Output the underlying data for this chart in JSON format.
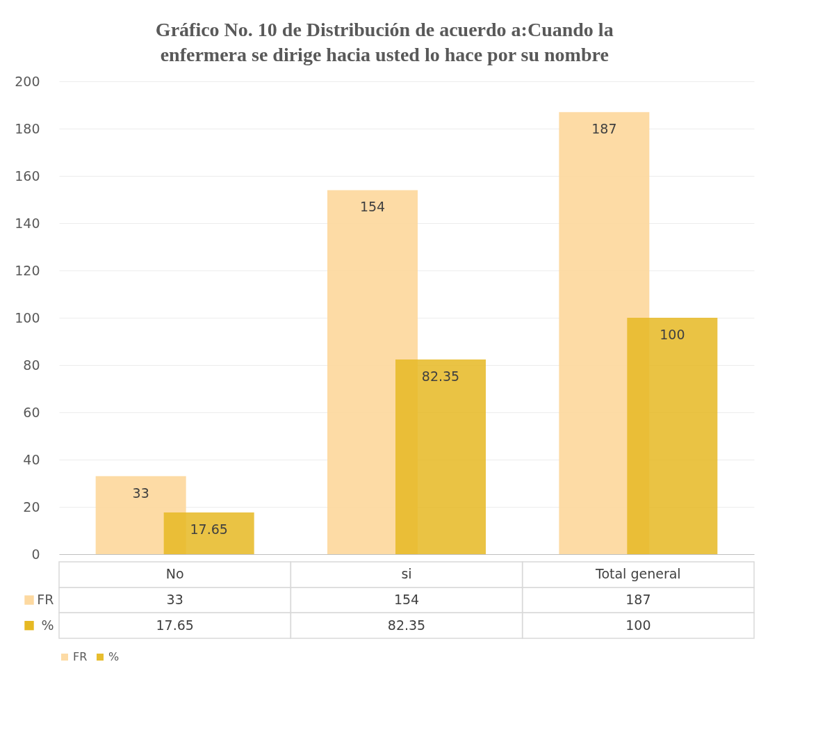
{
  "chart_data": {
    "type": "bar",
    "title": "Gráfico No. 10 de Distribución de acuerdo a:Cuando la enfermera se dirige hacia usted lo hace por su nombre",
    "categories": [
      "No",
      "si",
      "Total general"
    ],
    "series": [
      {
        "name": "FR",
        "color": "#fdd9a0",
        "values": [
          33,
          154,
          187
        ]
      },
      {
        "name": "%",
        "color": "#e6b923",
        "values": [
          17.65,
          82.35,
          100
        ]
      }
    ],
    "ylim": [
      0,
      200
    ],
    "yticks": [
      0,
      20,
      40,
      60,
      80,
      100,
      120,
      140,
      160,
      180,
      200
    ],
    "grid": "y",
    "legend": "bottom",
    "data_labels": true,
    "annotations": [
      "33",
      "154",
      "187",
      "17.65",
      "82.35",
      "100"
    ]
  }
}
